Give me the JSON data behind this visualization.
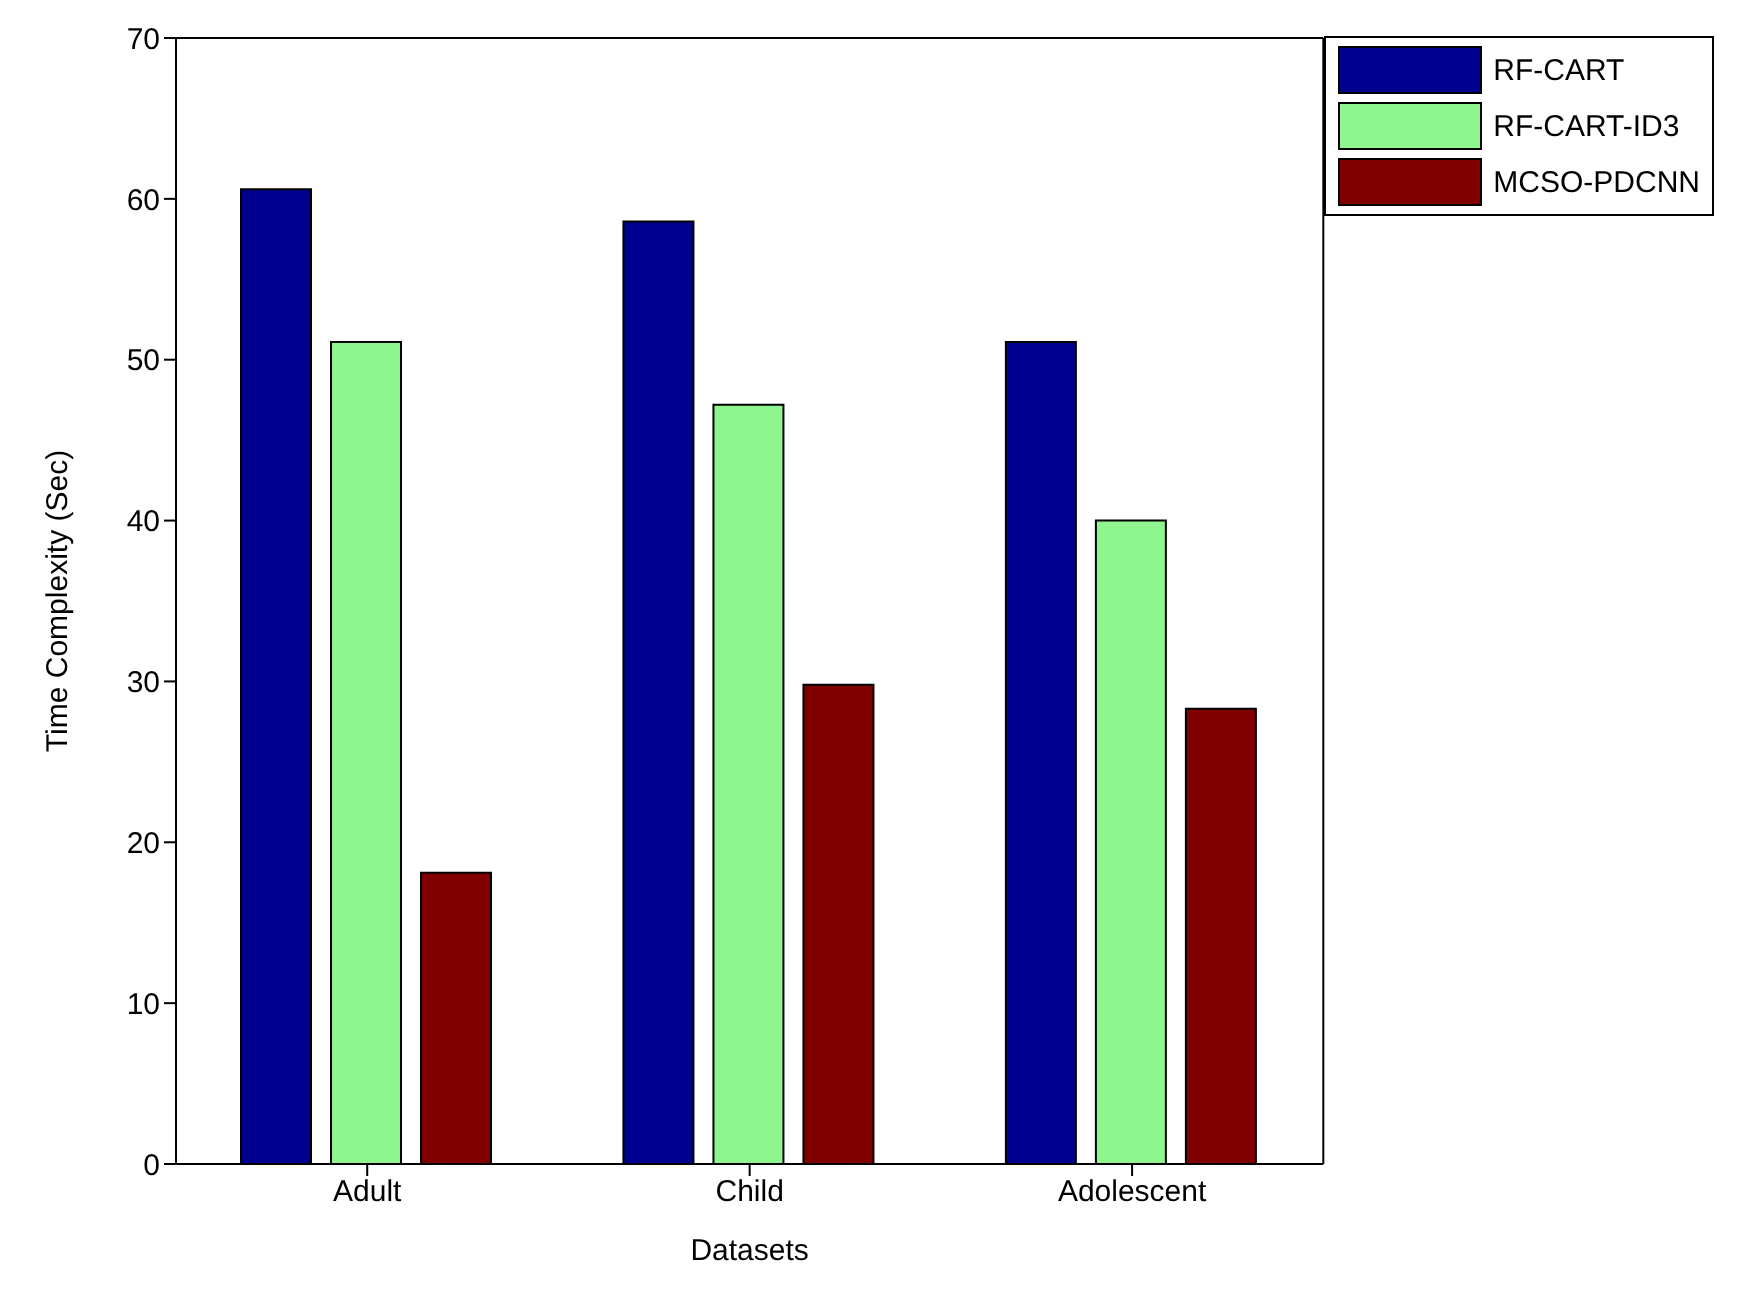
{
  "chart_data": {
    "type": "bar",
    "xlabel": "Datasets",
    "ylabel": "Time Complexity (Sec)",
    "categories": [
      "Adult",
      "Child",
      "Adolescent"
    ],
    "series": [
      {
        "name": "RF-CART",
        "color": "#00008f",
        "values": [
          60.6,
          58.6,
          51.1
        ]
      },
      {
        "name": "RF-CART-ID3",
        "color": "#8ff58f",
        "values": [
          51.1,
          47.2,
          40.0
        ]
      },
      {
        "name": "MCSO-PDCNN",
        "color": "#800000",
        "values": [
          18.1,
          29.8,
          28.3
        ]
      }
    ],
    "ylim": [
      0,
      70
    ],
    "yticks": [
      0,
      10,
      20,
      30,
      40,
      50,
      60,
      70
    ],
    "grid": false,
    "legend": "top right"
  }
}
